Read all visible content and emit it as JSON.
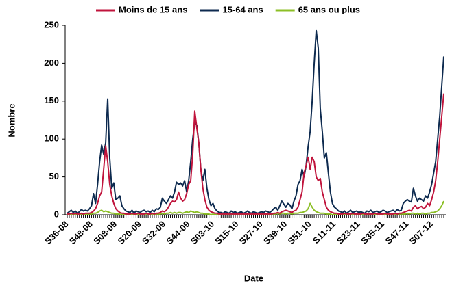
{
  "chart_data": {
    "type": "line",
    "x_label": "Date",
    "y_label": "Nombre",
    "categories": [
      "S36-08",
      null,
      null,
      null,
      null,
      null,
      null,
      null,
      null,
      null,
      null,
      null,
      "S48-08",
      null,
      null,
      null,
      null,
      null,
      null,
      null,
      null,
      null,
      null,
      null,
      "S08-09",
      null,
      null,
      null,
      null,
      null,
      null,
      null,
      null,
      null,
      null,
      null,
      "S20-09",
      null,
      null,
      null,
      null,
      null,
      null,
      null,
      null,
      null,
      null,
      null,
      "S32-09",
      null,
      null,
      null,
      null,
      null,
      null,
      null,
      null,
      null,
      null,
      null,
      "S44-09",
      null,
      null,
      null,
      null,
      null,
      null,
      null,
      null,
      null,
      null,
      null,
      "S03-10",
      null,
      null,
      null,
      null,
      null,
      null,
      null,
      null,
      null,
      null,
      null,
      "S15-10",
      null,
      null,
      null,
      null,
      null,
      null,
      null,
      null,
      null,
      null,
      null,
      "S27-10",
      null,
      null,
      null,
      null,
      null,
      null,
      null,
      null,
      null,
      null,
      null,
      "S39-10",
      null,
      null,
      null,
      null,
      null,
      null,
      null,
      null,
      null,
      null,
      null,
      "S51-10",
      null,
      null,
      null,
      null,
      null,
      null,
      null,
      null,
      null,
      null,
      null,
      "S11-11",
      null,
      null,
      null,
      null,
      null,
      null,
      null,
      null,
      null,
      null,
      null,
      "S23-11",
      null,
      null,
      null,
      null,
      null,
      null,
      null,
      null,
      null,
      null,
      null,
      "S35-11",
      null,
      null,
      null,
      null,
      null,
      null,
      null,
      null,
      null,
      null,
      null,
      "S47-11",
      null,
      null,
      null,
      null,
      null,
      null,
      null,
      null,
      null,
      null,
      null,
      "S07-12",
      null,
      null,
      null,
      null,
      null,
      null
    ],
    "series": [
      {
        "name": "Moins de 15 ans",
        "color": "#c0143c",
        "values": [
          1,
          1,
          2,
          1,
          2,
          1,
          1,
          2,
          1,
          2,
          2,
          2,
          3,
          5,
          8,
          15,
          25,
          30,
          60,
          91,
          70,
          40,
          25,
          15,
          8,
          5,
          3,
          2,
          2,
          1,
          1,
          1,
          2,
          1,
          1,
          2,
          1,
          1,
          1,
          2,
          1,
          1,
          2,
          1,
          2,
          2,
          3,
          5,
          4,
          6,
          10,
          15,
          18,
          17,
          20,
          30,
          22,
          18,
          20,
          28,
          40,
          45,
          80,
          137,
          115,
          95,
          60,
          35,
          20,
          10,
          6,
          4,
          3,
          2,
          2,
          1,
          1,
          1,
          1,
          1,
          1,
          1,
          1,
          1,
          1,
          1,
          1,
          1,
          1,
          1,
          1,
          1,
          1,
          1,
          1,
          1,
          1,
          1,
          1,
          1,
          1,
          1,
          2,
          2,
          3,
          2,
          4,
          5,
          6,
          5,
          4,
          3,
          5,
          6,
          10,
          20,
          30,
          55,
          65,
          76,
          60,
          76,
          70,
          50,
          45,
          48,
          30,
          20,
          10,
          6,
          4,
          3,
          2,
          2,
          1,
          1,
          1,
          2,
          1,
          1,
          1,
          2,
          1,
          1,
          1,
          1,
          2,
          1,
          1,
          1,
          1,
          1,
          2,
          1,
          1,
          1,
          1,
          2,
          1,
          1,
          1,
          1,
          2,
          1,
          2,
          2,
          3,
          4,
          5,
          6,
          5,
          10,
          12,
          8,
          10,
          11,
          8,
          10,
          15,
          12,
          20,
          30,
          45,
          70,
          100,
          130,
          160
        ]
      },
      {
        "name": "15-64 ans",
        "color": "#0d2a4f",
        "values": [
          2,
          4,
          6,
          3,
          5,
          2,
          4,
          7,
          5,
          6,
          5,
          8,
          12,
          28,
          15,
          40,
          70,
          92,
          80,
          95,
          153,
          75,
          35,
          42,
          20,
          22,
          25,
          12,
          8,
          5,
          4,
          3,
          6,
          2,
          5,
          4,
          3,
          5,
          6,
          4,
          5,
          3,
          6,
          4,
          8,
          7,
          10,
          22,
          18,
          15,
          20,
          25,
          22,
          30,
          43,
          40,
          42,
          38,
          45,
          30,
          45,
          70,
          100,
          122,
          118,
          95,
          60,
          45,
          60,
          35,
          20,
          12,
          15,
          8,
          5,
          3,
          3,
          2,
          4,
          3,
          2,
          5,
          3,
          4,
          2,
          3,
          4,
          2,
          3,
          5,
          3,
          2,
          4,
          3,
          2,
          3,
          4,
          3,
          5,
          4,
          3,
          5,
          8,
          10,
          6,
          12,
          18,
          14,
          10,
          15,
          13,
          8,
          18,
          25,
          40,
          45,
          60,
          50,
          65,
          90,
          110,
          150,
          200,
          243,
          220,
          140,
          110,
          75,
          82,
          55,
          30,
          15,
          10,
          8,
          5,
          4,
          3,
          5,
          2,
          4,
          6,
          3,
          4,
          5,
          3,
          4,
          3,
          2,
          5,
          4,
          6,
          3,
          4,
          5,
          3,
          4,
          6,
          5,
          3,
          4,
          5,
          6,
          4,
          7,
          5,
          6,
          15,
          18,
          20,
          18,
          17,
          35,
          25,
          18,
          22,
          20,
          18,
          25,
          22,
          30,
          40,
          55,
          70,
          100,
          130,
          170,
          209
        ]
      },
      {
        "name": "65 ans ou plus",
        "color": "#8cbf26",
        "values": [
          0,
          1,
          0,
          1,
          0,
          1,
          0,
          1,
          1,
          0,
          1,
          1,
          1,
          2,
          2,
          3,
          5,
          6,
          4,
          5,
          4,
          3,
          2,
          2,
          1,
          1,
          1,
          0,
          1,
          0,
          0,
          0,
          1,
          0,
          0,
          1,
          0,
          0,
          0,
          1,
          0,
          0,
          1,
          0,
          1,
          1,
          1,
          2,
          1,
          2,
          2,
          3,
          2,
          3,
          2,
          3,
          3,
          2,
          3,
          4,
          3,
          5,
          4,
          3,
          4,
          3,
          2,
          2,
          1,
          1,
          1,
          0,
          1,
          0,
          0,
          0,
          0,
          1,
          0,
          0,
          1,
          0,
          0,
          1,
          0,
          0,
          1,
          0,
          0,
          1,
          0,
          0,
          1,
          0,
          0,
          1,
          0,
          0,
          1,
          0,
          1,
          1,
          1,
          1,
          2,
          1,
          2,
          2,
          1,
          2,
          2,
          1,
          2,
          2,
          2,
          3,
          3,
          4,
          5,
          8,
          15,
          10,
          6,
          4,
          3,
          2,
          2,
          2,
          1,
          1,
          1,
          0,
          1,
          0,
          0,
          0,
          1,
          0,
          0,
          1,
          0,
          0,
          1,
          0,
          0,
          1,
          0,
          0,
          1,
          0,
          0,
          1,
          0,
          0,
          1,
          0,
          1,
          0,
          1,
          0,
          1,
          1,
          0,
          1,
          1,
          1,
          1,
          1,
          2,
          1,
          2,
          2,
          1,
          2,
          1,
          2,
          2,
          1,
          2,
          2,
          3,
          3,
          4,
          5,
          8,
          12,
          18
        ]
      }
    ],
    "ylim": [
      0,
      250
    ],
    "yticks": [
      0,
      50,
      100,
      150,
      200,
      250
    ],
    "grid": false,
    "legend": "top"
  }
}
